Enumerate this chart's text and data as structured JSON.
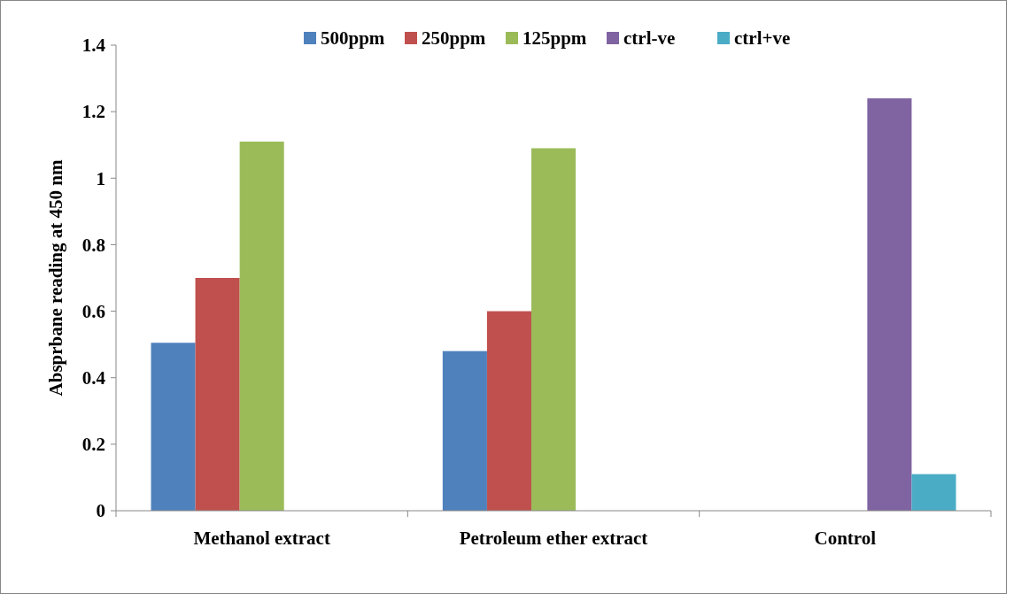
{
  "chart_data": {
    "type": "bar",
    "ylabel": "Absprbane reading at 450 nm",
    "categories": [
      "Methanol extract",
      "Petroleum ether extract",
      "Control"
    ],
    "series": [
      {
        "name": "500ppm",
        "color": "#4f81bd",
        "values": [
          0.505,
          0.48,
          null
        ]
      },
      {
        "name": "250ppm",
        "color": "#c0504d",
        "values": [
          0.7,
          0.6,
          null
        ]
      },
      {
        "name": "125ppm",
        "color": "#9bbb59",
        "values": [
          1.11,
          1.09,
          null
        ]
      },
      {
        "name": "ctrl-ve",
        "color": "#8064a2",
        "values": [
          null,
          null,
          1.24
        ]
      },
      {
        "name": "ctrl+ve",
        "color": "#4bacc6",
        "values": [
          null,
          null,
          0.11
        ]
      }
    ],
    "ylim": [
      0,
      1.4
    ],
    "yticks": [
      0,
      0.2,
      0.4,
      0.6,
      0.8,
      1,
      1.2,
      1.4
    ],
    "grid": false,
    "legend": "top"
  }
}
